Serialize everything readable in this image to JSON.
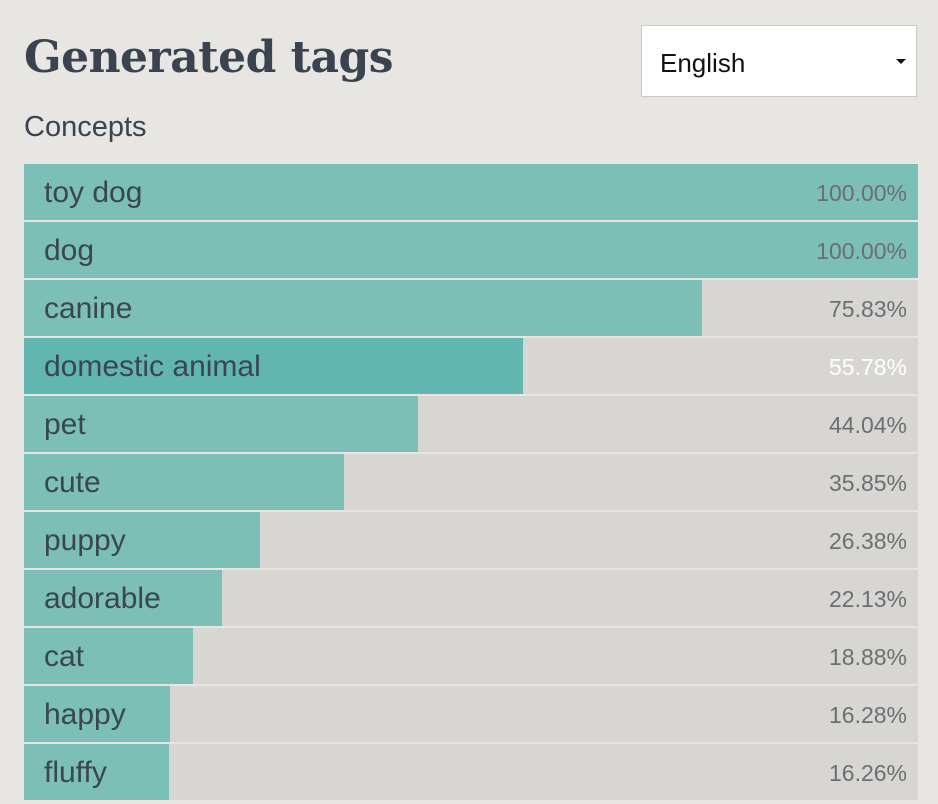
{
  "header": {
    "title": "Generated tags"
  },
  "language": {
    "selected": "English"
  },
  "concepts": {
    "label": "Concepts",
    "selected_index": 3,
    "tags": [
      {
        "name": "toy dog",
        "score_label": "100.00%",
        "score": 100.0
      },
      {
        "name": "dog",
        "score_label": "100.00%",
        "score": 100.0
      },
      {
        "name": "canine",
        "score_label": "75.83%",
        "score": 75.83
      },
      {
        "name": "domestic animal",
        "score_label": "55.78%",
        "score": 55.78
      },
      {
        "name": "pet",
        "score_label": "44.04%",
        "score": 44.04
      },
      {
        "name": "cute",
        "score_label": "35.85%",
        "score": 35.85
      },
      {
        "name": "puppy",
        "score_label": "26.38%",
        "score": 26.38
      },
      {
        "name": "adorable",
        "score_label": "22.13%",
        "score": 22.13
      },
      {
        "name": "cat",
        "score_label": "18.88%",
        "score": 18.88
      },
      {
        "name": "happy",
        "score_label": "16.28%",
        "score": 16.28
      },
      {
        "name": "fluffy",
        "score_label": "16.26%",
        "score": 16.26
      }
    ]
  },
  "colors": {
    "background": "#e7e6e2",
    "bar_fill": "#7bbfb6",
    "bar_fill_selected": "#61b7af",
    "bar_track": "#d7d6d3",
    "text": "#3a4450"
  }
}
